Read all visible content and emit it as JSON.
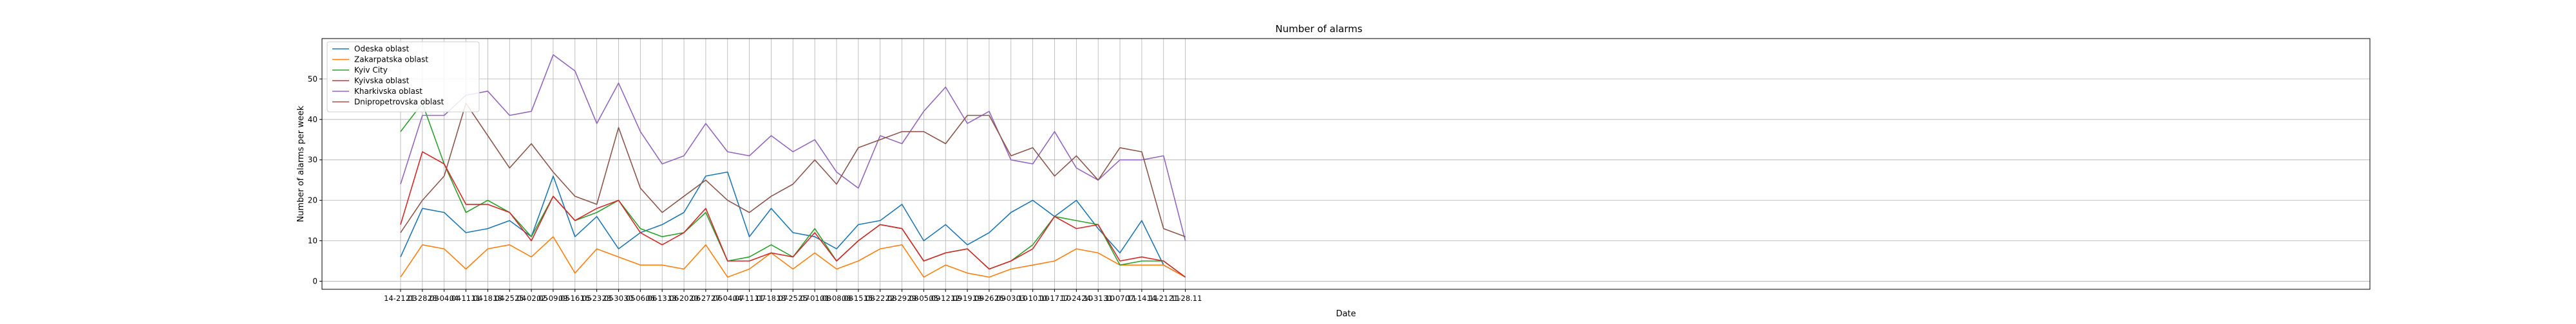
{
  "chart_data": {
    "type": "line",
    "title": "Number of alarms",
    "xlabel": "Date",
    "ylabel": "Number of alarms per week",
    "ylim": [
      -2,
      60
    ],
    "yticks": [
      0,
      10,
      20,
      30,
      40,
      50
    ],
    "grid": true,
    "legend_position": "top-left",
    "categories": [
      "14-21.03",
      "21-28.03",
      "28-04.04",
      "04-11.04",
      "11-18.04",
      "18-25.04",
      "25-02.05",
      "02-09.05",
      "09-16.05",
      "16-23.05",
      "23-30.05",
      "30-06.06",
      "06-13.06",
      "13-20.06",
      "20-27.06",
      "27-04.07",
      "04-11.07",
      "11-18.07",
      "18-25.07",
      "25-01.08",
      "01-08.08",
      "08-15.08",
      "15-22.08",
      "22-29.08",
      "29-05.09",
      "05-12.09",
      "12-19.09",
      "19-26.09",
      "26-03.10",
      "03-10.10",
      "10-17.10",
      "17-24.10",
      "24-31.10",
      "31-07.11",
      "07-14.11",
      "14-21.11",
      "21-28.11"
    ],
    "x_tick_labels": [
      "14-21.03",
      "21-28.03",
      "28-04.04",
      "04-11.04",
      "11-18.04",
      "18-25.04",
      "25-02.05",
      "02-09.05",
      "09-16.05",
      "16-23.05",
      "23-30.05",
      "30-06.06",
      "06-13.06",
      "13-20.06",
      "20-27.06",
      "27-04.07",
      "04-11.07",
      "11-18.07",
      "18-25.07",
      "25-01.08",
      "01-08.08",
      "08-15.08",
      "15-22.08",
      "22-29.08",
      "29-05.09",
      "05-12.09",
      "12-19.09",
      "19-26.09",
      "26-03.10",
      "03-10.10",
      "10-17.10",
      "17-24.10",
      "24-31.10",
      "31-07.11",
      "07-14.11",
      "14-21.11",
      "21-28.11"
    ],
    "series": [
      {
        "name": "Odeska oblast",
        "color": "#1f77b4",
        "values": [
          6,
          18,
          17,
          12,
          13,
          15,
          11,
          26,
          11,
          16,
          8,
          12,
          14,
          17,
          26,
          27,
          11,
          18,
          12,
          11,
          8,
          14,
          15,
          19,
          10,
          14,
          9,
          12,
          17,
          20,
          16,
          20,
          13,
          7,
          15,
          4,
          1
        ]
      },
      {
        "name": "Zakarpatska oblast",
        "color": "#ff7f0e",
        "values": [
          1,
          9,
          8,
          3,
          8,
          9,
          6,
          11,
          2,
          8,
          6,
          4,
          4,
          3,
          9,
          1,
          3,
          7,
          3,
          7,
          3,
          5,
          8,
          9,
          1,
          4,
          2,
          1,
          3,
          4,
          5,
          8,
          7,
          4,
          4,
          4,
          1
        ]
      },
      {
        "name": "Kyiv City",
        "color": "#2ca02c",
        "values": [
          37,
          44,
          29,
          17,
          20,
          17,
          11,
          21,
          15,
          17,
          20,
          13,
          11,
          12,
          17,
          5,
          6,
          9,
          6,
          13,
          5,
          10,
          14,
          13,
          5,
          7,
          8,
          3,
          5,
          9,
          16,
          15,
          14,
          4,
          5,
          5,
          1
        ]
      },
      {
        "name": "Kyivska oblast",
        "color": "#d62728",
        "values": [
          14,
          32,
          29,
          19,
          19,
          17,
          10,
          21,
          15,
          18,
          20,
          12,
          9,
          12,
          18,
          5,
          5,
          7,
          6,
          12,
          5,
          10,
          14,
          13,
          5,
          7,
          8,
          3,
          5,
          8,
          16,
          13,
          14,
          5,
          6,
          5,
          1
        ]
      },
      {
        "name": "Kharkivska oblast",
        "color": "#9467bd",
        "values": [
          24,
          41,
          41,
          46,
          47,
          41,
          42,
          56,
          52,
          39,
          49,
          37,
          29,
          31,
          39,
          32,
          31,
          36,
          32,
          35,
          27,
          23,
          36,
          34,
          42,
          48,
          39,
          42,
          30,
          29,
          37,
          28,
          25,
          30,
          30,
          31,
          10
        ]
      },
      {
        "name": "Dnipropetrovska oblast",
        "color": "#8c564b",
        "values": [
          12,
          20,
          26,
          44,
          36,
          28,
          34,
          27,
          21,
          19,
          38,
          23,
          17,
          21,
          25,
          20,
          17,
          21,
          24,
          30,
          24,
          33,
          35,
          37,
          37,
          34,
          41,
          41,
          31,
          33,
          26,
          31,
          25,
          33,
          32,
          13,
          11
        ]
      }
    ]
  }
}
